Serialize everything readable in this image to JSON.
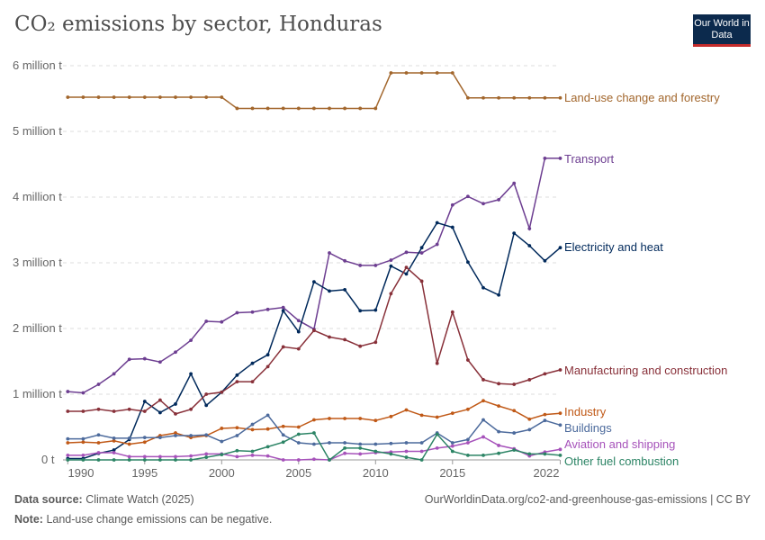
{
  "header": {
    "title": "CO₂ emissions by sector, Honduras",
    "logo_text": "Our World in Data"
  },
  "footer": {
    "source_label": "Data source:",
    "source": "Climate Watch (2025)",
    "url": "OurWorldinData.org/co2-and-greenhouse-gas-emissions | CC BY",
    "note_label": "Note:",
    "note": "Land-use change emissions can be negative."
  },
  "chart_data": {
    "type": "line",
    "title": "CO₂ emissions by sector, Honduras",
    "x": [
      1990,
      1991,
      1992,
      1993,
      1994,
      1995,
      1996,
      1997,
      1998,
      1999,
      2000,
      2001,
      2002,
      2003,
      2004,
      2005,
      2006,
      2007,
      2008,
      2009,
      2010,
      2011,
      2012,
      2013,
      2014,
      2015,
      2016,
      2017,
      2018,
      2019,
      2020,
      2021,
      2022
    ],
    "xticks": [
      "1990",
      "1995",
      "2000",
      "2005",
      "2010",
      "2015",
      "2022"
    ],
    "yticks": [
      "0 t",
      "1 million t",
      "2 million t",
      "3 million t",
      "4 million t",
      "5 million t",
      "6 million t"
    ],
    "ylim": [
      0,
      6000000
    ],
    "grid": true,
    "legend": "line-end labels",
    "unit": "million t",
    "series": [
      {
        "name": "Land-use change and forestry",
        "color": "#a2662c",
        "values": [
          5.52,
          5.52,
          5.52,
          5.52,
          5.52,
          5.52,
          5.52,
          5.52,
          5.52,
          5.52,
          5.52,
          5.35,
          5.35,
          5.35,
          5.35,
          5.35,
          5.35,
          5.35,
          5.35,
          5.35,
          5.35,
          5.89,
          5.89,
          5.89,
          5.89,
          5.89,
          5.51,
          5.51,
          5.51,
          5.51,
          5.51,
          5.51,
          5.51
        ]
      },
      {
        "name": "Transport",
        "color": "#6d3e91",
        "values": [
          1.04,
          1.02,
          1.15,
          1.31,
          1.53,
          1.54,
          1.49,
          1.64,
          1.82,
          2.11,
          2.1,
          2.24,
          2.25,
          2.29,
          2.32,
          2.12,
          1.99,
          3.15,
          3.03,
          2.96,
          2.96,
          3.04,
          3.16,
          3.15,
          3.28,
          3.88,
          4.01,
          3.9,
          3.96,
          4.21,
          3.52,
          4.59,
          4.59
        ]
      },
      {
        "name": "Electricity and heat",
        "color": "#00295b",
        "values": [
          0.02,
          0.02,
          0.1,
          0.15,
          0.31,
          0.89,
          0.72,
          0.85,
          1.31,
          0.83,
          1.03,
          1.29,
          1.47,
          1.6,
          2.27,
          1.95,
          2.71,
          2.57,
          2.59,
          2.27,
          2.28,
          2.95,
          2.83,
          3.23,
          3.61,
          3.54,
          3.01,
          2.62,
          2.51,
          3.45,
          3.26,
          3.03,
          3.23
        ]
      },
      {
        "name": "Manufacturing and construction",
        "color": "#883039",
        "values": [
          0.74,
          0.74,
          0.77,
          0.74,
          0.77,
          0.74,
          0.91,
          0.7,
          0.77,
          1.0,
          1.03,
          1.19,
          1.19,
          1.42,
          1.72,
          1.69,
          1.97,
          1.87,
          1.83,
          1.73,
          1.79,
          2.53,
          2.93,
          2.72,
          1.47,
          2.25,
          1.52,
          1.22,
          1.16,
          1.15,
          1.22,
          1.31,
          1.37
        ]
      },
      {
        "name": "Industry",
        "color": "#c05917",
        "values": [
          0.26,
          0.27,
          0.26,
          0.29,
          0.24,
          0.27,
          0.37,
          0.41,
          0.34,
          0.37,
          0.48,
          0.49,
          0.46,
          0.47,
          0.51,
          0.5,
          0.61,
          0.63,
          0.63,
          0.63,
          0.6,
          0.66,
          0.76,
          0.68,
          0.65,
          0.71,
          0.77,
          0.9,
          0.82,
          0.75,
          0.62,
          0.69,
          0.71
        ]
      },
      {
        "name": "Buildings",
        "color": "#4c6a9c",
        "values": [
          0.32,
          0.32,
          0.38,
          0.33,
          0.33,
          0.34,
          0.34,
          0.37,
          0.37,
          0.38,
          0.28,
          0.37,
          0.54,
          0.68,
          0.38,
          0.26,
          0.24,
          0.26,
          0.26,
          0.24,
          0.24,
          0.25,
          0.26,
          0.26,
          0.41,
          0.26,
          0.31,
          0.61,
          0.43,
          0.41,
          0.46,
          0.6,
          0.53
        ]
      },
      {
        "name": "Aviation and shipping",
        "color": "#a652ba",
        "values": [
          0.07,
          0.07,
          0.11,
          0.11,
          0.05,
          0.05,
          0.05,
          0.05,
          0.06,
          0.09,
          0.09,
          0.05,
          0.07,
          0.06,
          0.0,
          0.0,
          0.01,
          0.0,
          0.1,
          0.09,
          0.11,
          0.12,
          0.13,
          0.13,
          0.18,
          0.21,
          0.26,
          0.35,
          0.22,
          0.17,
          0.06,
          0.12,
          0.16
        ]
      },
      {
        "name": "Other fuel combustion",
        "color": "#2c8465",
        "values": [
          0.0,
          0.0,
          0.0,
          0.0,
          0.0,
          0.0,
          0.0,
          0.0,
          0.0,
          0.04,
          0.08,
          0.14,
          0.13,
          0.2,
          0.27,
          0.39,
          0.41,
          0.0,
          0.18,
          0.18,
          0.13,
          0.09,
          0.04,
          0.0,
          0.39,
          0.13,
          0.07,
          0.07,
          0.1,
          0.15,
          0.09,
          0.09,
          0.07
        ]
      }
    ]
  }
}
